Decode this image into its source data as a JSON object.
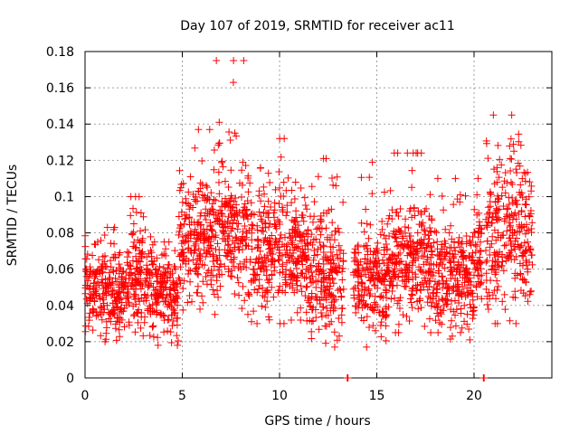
{
  "chart_data": {
    "type": "scatter",
    "title": "Day 107 of 2019, SRMTID for receiver ac11",
    "xlabel": "GPS time / hours",
    "ylabel": "SRMTID / TECUs",
    "xlim": [
      0,
      24
    ],
    "ylim": [
      0,
      0.18
    ],
    "xticks": [
      0,
      5,
      10,
      15,
      20
    ],
    "xtick_labels": [
      "0",
      "5",
      "10",
      "15",
      "20"
    ],
    "yticks": [
      0,
      0.02,
      0.04,
      0.06,
      0.08,
      0.1,
      0.12,
      0.14,
      0.16,
      0.18
    ],
    "ytick_labels": [
      "0",
      "0.02",
      "0.04",
      "0.06",
      "0.08",
      "0.1",
      "0.12",
      "0.14",
      "0.16",
      "0.18"
    ],
    "grid": true,
    "marker": "+",
    "color": "#ff0000",
    "series": [
      {
        "name": "SRMTID",
        "segments": [
          {
            "start": 0.0,
            "end": 2.0,
            "mean": 0.048,
            "spread": 0.012,
            "min": 0.02,
            "max": 0.083
          },
          {
            "start": 2.0,
            "end": 3.5,
            "mean": 0.055,
            "spread": 0.015,
            "min": 0.013,
            "max": 0.1
          },
          {
            "start": 3.5,
            "end": 4.8,
            "mean": 0.045,
            "spread": 0.011,
            "min": 0.018,
            "max": 0.075
          },
          {
            "start": 4.8,
            "end": 6.5,
            "mean": 0.075,
            "spread": 0.017,
            "min": 0.035,
            "max": 0.137
          },
          {
            "start": 6.5,
            "end": 8.5,
            "mean": 0.082,
            "spread": 0.02,
            "min": 0.035,
            "max": 0.175
          },
          {
            "start": 8.5,
            "end": 11.5,
            "mean": 0.07,
            "spread": 0.017,
            "min": 0.03,
            "max": 0.132
          },
          {
            "start": 11.5,
            "end": 13.3,
            "mean": 0.057,
            "spread": 0.018,
            "min": 0.017,
            "max": 0.121
          },
          {
            "start": 13.8,
            "end": 15.5,
            "mean": 0.053,
            "spread": 0.014,
            "min": 0.017,
            "max": 0.119
          },
          {
            "start": 15.5,
            "end": 18.0,
            "mean": 0.063,
            "spread": 0.016,
            "min": 0.025,
            "max": 0.124
          },
          {
            "start": 18.0,
            "end": 20.0,
            "mean": 0.055,
            "spread": 0.015,
            "min": 0.021,
            "max": 0.11
          },
          {
            "start": 20.0,
            "end": 20.4,
            "mean": 0.07,
            "spread": 0.015,
            "min": 0.035,
            "max": 0.11
          },
          {
            "start": 20.6,
            "end": 23.0,
            "mean": 0.08,
            "spread": 0.022,
            "min": 0.03,
            "max": 0.145
          }
        ],
        "points_near_zero": [
          {
            "x": 13.5,
            "y": 0.0
          },
          {
            "x": 20.5,
            "y": 0.0
          }
        ]
      }
    ]
  }
}
